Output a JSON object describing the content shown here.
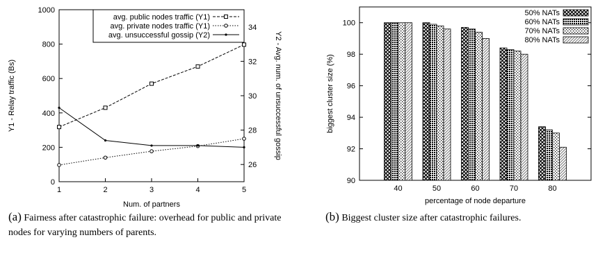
{
  "chart_data": [
    {
      "type": "line",
      "xlabel": "Num. of partners",
      "ylabel": "Y1 - Relay traffic (Bs)",
      "y2label": "Y2 - Avg. num. of unsuccessful gossip",
      "x": [
        1,
        2,
        3,
        4,
        5
      ],
      "x_ticks": [
        "1",
        "2",
        "3",
        "4",
        "5"
      ],
      "xlim": [
        1,
        5
      ],
      "ylim": [
        0,
        1000
      ],
      "y_ticks": [
        "0",
        "200",
        "400",
        "600",
        "800",
        "1000"
      ],
      "y2lim": [
        25,
        35
      ],
      "y2_ticks": [
        "26",
        "28",
        "30",
        "32",
        "34"
      ],
      "legend_position": "top",
      "series": [
        {
          "name": "avg. public nodes traffic (Y1)",
          "axis": "y1",
          "values": [
            318,
            430,
            570,
            670,
            797
          ],
          "marker": "square",
          "dash": "dashed"
        },
        {
          "name": "avg. private nodes traffic (Y1)",
          "axis": "y1",
          "values": [
            97,
            140,
            177,
            207,
            250
          ],
          "marker": "circle",
          "dash": "dotted"
        },
        {
          "name": "avg. unsuccessful gossip (Y2)",
          "axis": "y2",
          "values": [
            29.3,
            27.4,
            27.1,
            27.1,
            27.0
          ],
          "marker": "dot",
          "dash": "solid"
        }
      ]
    },
    {
      "type": "bar",
      "xlabel": "percentage of node departure",
      "ylabel": "biggest cluster size (%)",
      "categories": [
        "40",
        "50",
        "60",
        "70",
        "80"
      ],
      "ylim": [
        90,
        101
      ],
      "y_ticks": [
        "90",
        "92",
        "94",
        "96",
        "98",
        "100"
      ],
      "legend_position": "top-right",
      "series": [
        {
          "name": "50% NATs",
          "values": [
            100,
            100,
            99.7,
            98.4,
            93.4
          ],
          "pattern": "crosshatch"
        },
        {
          "name": "60% NATs",
          "values": [
            100,
            99.9,
            99.6,
            98.3,
            93.2
          ],
          "pattern": "dense-dots"
        },
        {
          "name": "70% NATs",
          "values": [
            100,
            99.8,
            99.4,
            98.2,
            93.0
          ],
          "pattern": "sparse-dots"
        },
        {
          "name": "80% NATs",
          "values": [
            100,
            99.6,
            99.0,
            98.0,
            92.1
          ],
          "pattern": "diagonal"
        }
      ]
    }
  ],
  "captions": {
    "a_label": "(a)",
    "a_text": "Fairness after catastrophic failure: overhead for public and private nodes for varying numbers of parents.",
    "b_label": "(b)",
    "b_text": "Biggest cluster size after catastrophic failures."
  }
}
